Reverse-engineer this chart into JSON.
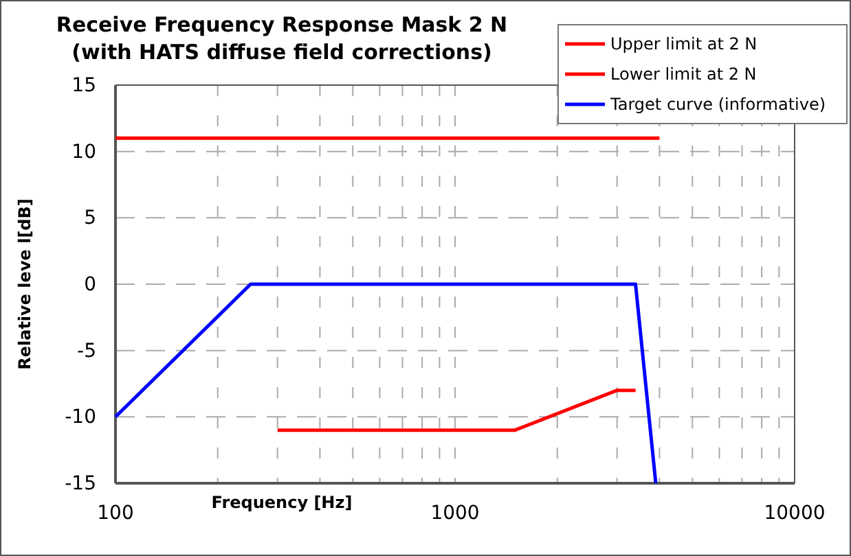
{
  "chart_data": {
    "type": "line",
    "title": "Receive Frequency Response Mask 2 N (with HATS diffuse field corrections)",
    "xlabel": "Frequency [Hz]",
    "ylabel": "Relative leve l[dB]",
    "log": "x",
    "xlim": [
      100,
      10000
    ],
    "ylim": [
      -15,
      15
    ],
    "xticks": [
      100,
      {
        "value": 200,
        "label": null
      },
      {
        "value": 300,
        "label": null
      },
      {
        "value": 400,
        "label": null
      },
      {
        "value": 500,
        "label": null
      },
      {
        "value": 600,
        "label": null
      },
      {
        "value": 700,
        "label": null
      },
      {
        "value": 800,
        "label": null
      },
      {
        "value": 900,
        "label": null
      },
      1000,
      {
        "value": 2000,
        "label": null
      },
      {
        "value": 3000,
        "label": null
      },
      {
        "value": 4000,
        "label": null
      },
      {
        "value": 5000,
        "label": null
      },
      {
        "value": 6000,
        "label": null
      },
      {
        "value": 7000,
        "label": null
      },
      {
        "value": 8000,
        "label": null
      },
      {
        "value": 9000,
        "label": null
      },
      10000
    ],
    "yticks": [
      -15,
      -10,
      -5,
      0,
      5,
      10,
      15
    ],
    "grid": true,
    "legend": "top right",
    "line_style": "solid",
    "marker": "none",
    "series": [
      {
        "name": "Upper limit at 2 N",
        "color": "#ff0000",
        "x": [
          100,
          4000
        ],
        "values": [
          11,
          11
        ]
      },
      {
        "name": "Lower limit at 2 N",
        "color": "#ff0000",
        "x": [
          300,
          1500,
          3000,
          3400
        ],
        "values": [
          -11,
          -11,
          -8,
          -8
        ]
      },
      {
        "name": "Target curve (informative)",
        "color": "#0000ff",
        "x": [
          100,
          250,
          3400,
          3900
        ],
        "values": [
          -10,
          0,
          0,
          -15
        ]
      }
    ]
  }
}
